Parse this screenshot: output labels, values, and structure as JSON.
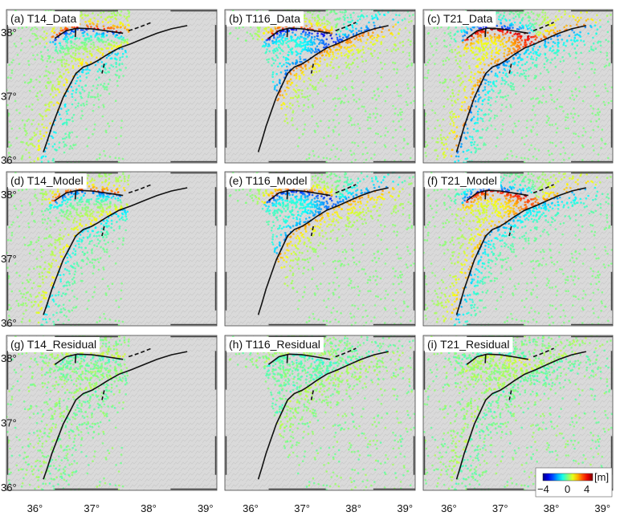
{
  "panels": [
    {
      "label": "(a) T14_Data",
      "track": "T14",
      "kind": "data"
    },
    {
      "label": "(b) T116_Data",
      "track": "T116",
      "kind": "data"
    },
    {
      "label": "(c) T21_Data",
      "track": "T21",
      "kind": "data"
    },
    {
      "label": "(d) T14_Model",
      "track": "T14",
      "kind": "model"
    },
    {
      "label": "(e) T116_Model",
      "track": "T116",
      "kind": "model"
    },
    {
      "label": "(f) T21_Model",
      "track": "T21",
      "kind": "model"
    },
    {
      "label": "(g) T14_Residual",
      "track": "T14",
      "kind": "residual"
    },
    {
      "label": "(h) T116_Residual",
      "track": "T116",
      "kind": "residual"
    },
    {
      "label": "(i) T21_Residual",
      "track": "T21",
      "kind": "residual"
    }
  ],
  "axes": {
    "lon_ticks": [
      "36°",
      "37°",
      "38°",
      "39°"
    ],
    "lat_ticks": [
      "38°",
      "37°",
      "36°"
    ],
    "lon_range": [
      35.5,
      39.2
    ],
    "lat_range": [
      35.95,
      38.35
    ]
  },
  "colorbar": {
    "unit": "[m]",
    "tick_labels": [
      "−4",
      "0",
      "4"
    ],
    "range": [
      -4,
      4
    ],
    "colormap": "jet"
  },
  "colors": {
    "hillshade_light": "#dadada",
    "hillshade_dark": "#bdbdbd",
    "fault": "#111111",
    "background_point": "#3fd07a"
  }
}
